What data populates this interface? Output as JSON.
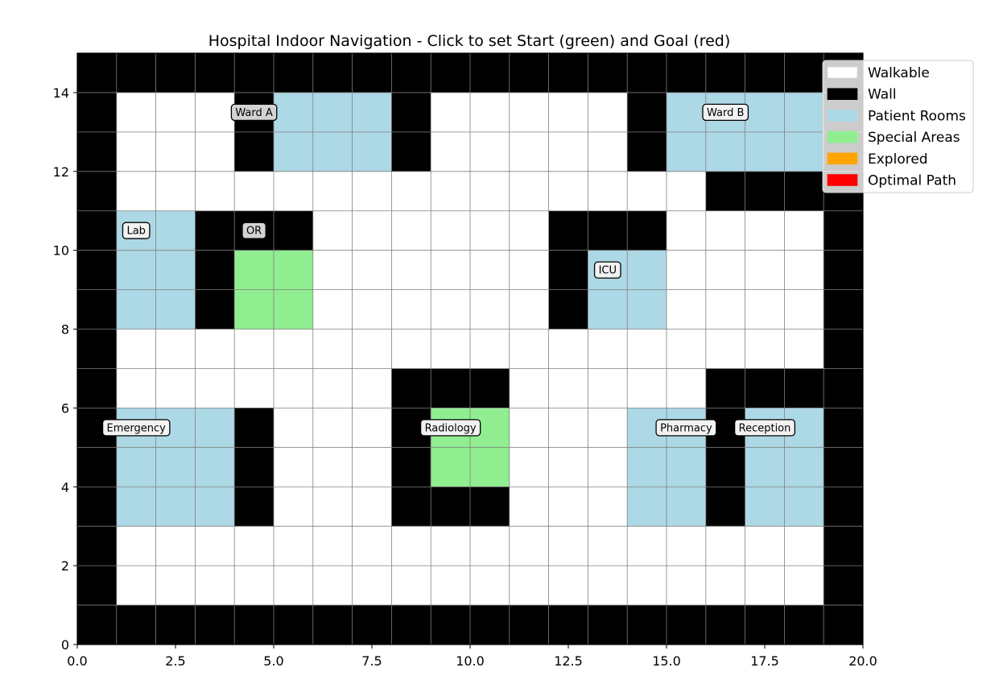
{
  "title": "Hospital Indoor Navigation - Click to set Start (green) and Goal (red)",
  "chart_data": {
    "type": "heatmap",
    "xlim": [
      0,
      20
    ],
    "ylim": [
      0,
      15
    ],
    "x_ticks": [
      {
        "value": 0,
        "label": "0.0"
      },
      {
        "value": 2.5,
        "label": "2.5"
      },
      {
        "value": 5,
        "label": "5.0"
      },
      {
        "value": 7.5,
        "label": "7.5"
      },
      {
        "value": 10,
        "label": "10.0"
      },
      {
        "value": 12.5,
        "label": "12.5"
      },
      {
        "value": 15,
        "label": "15.0"
      },
      {
        "value": 17.5,
        "label": "17.5"
      },
      {
        "value": 20,
        "label": "20.0"
      }
    ],
    "y_ticks": [
      {
        "value": 0,
        "label": "0"
      },
      {
        "value": 2,
        "label": "2"
      },
      {
        "value": 4,
        "label": "4"
      },
      {
        "value": 6,
        "label": "6"
      },
      {
        "value": 8,
        "label": "8"
      },
      {
        "value": 10,
        "label": "10"
      },
      {
        "value": 12,
        "label": "12"
      },
      {
        "value": 14,
        "label": "14"
      }
    ],
    "grid": true,
    "cell_legend": {
      ".": "walkable",
      "#": "wall",
      "p": "patient_room",
      "s": "special_area"
    },
    "grid_rows_top_to_bottom": [
      "####################",
      "#...#ppp#.....#pppp#",
      "#...#ppp#.....#pppp#",
      "#...............####",
      "#pp###......###....#",
      "#pp#ss......#pp....#",
      "#pp#ss......#pp....#",
      "#..................#",
      "#.......###.....####",
      "#ppp#...#ss...pp#pp#",
      "#ppp#...#ss...pp#pp#",
      "#ppp#...###...pp#pp#",
      "#..................#",
      "#..................#",
      "####################"
    ],
    "room_labels": [
      {
        "text": "Ward A",
        "x": 4.5,
        "y": 13.5
      },
      {
        "text": "Ward B",
        "x": 16.5,
        "y": 13.5
      },
      {
        "text": "Lab",
        "x": 1.5,
        "y": 10.5
      },
      {
        "text": "OR",
        "x": 4.5,
        "y": 10.5
      },
      {
        "text": "ICU",
        "x": 13.5,
        "y": 9.5
      },
      {
        "text": "Emergency",
        "x": 1.5,
        "y": 5.5
      },
      {
        "text": "Radiology",
        "x": 9.5,
        "y": 5.5
      },
      {
        "text": "Pharmacy",
        "x": 15.5,
        "y": 5.5
      },
      {
        "text": "Reception",
        "x": 17.5,
        "y": 5.5
      }
    ],
    "legend": {
      "placement": "upper-right",
      "entries": [
        {
          "label": "Walkable",
          "color": "#ffffff"
        },
        {
          "label": "Wall",
          "color": "#000000"
        },
        {
          "label": "Patient Rooms",
          "color": "#add8e6"
        },
        {
          "label": "Special Areas",
          "color": "#90ee90"
        },
        {
          "label": "Explored",
          "color": "#ffa500"
        },
        {
          "label": "Optimal Path",
          "color": "#ff0000"
        }
      ]
    }
  },
  "colors": {
    "walkable": "#ffffff",
    "wall": "#000000",
    "patient_room": "#add8e6",
    "special_area": "#90ee90",
    "grid_line": "#808080",
    "label_box_light": "#f2f2f2",
    "label_box_dim": "#d3d3d3"
  }
}
